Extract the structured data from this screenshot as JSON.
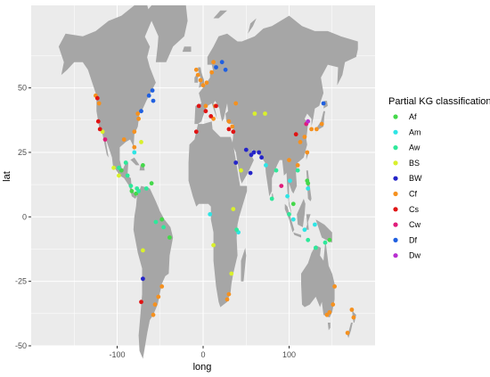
{
  "chart_data": {
    "type": "scatter",
    "title": "",
    "xlabel": "long",
    "ylabel": "lat",
    "xlim": [
      -200,
      200
    ],
    "ylim": [
      -50,
      82
    ],
    "x_ticks": [
      -100,
      0,
      100
    ],
    "y_ticks": [
      -50,
      -25,
      0,
      25,
      50
    ],
    "tick_labels_x": [
      "-100",
      "0",
      "100"
    ],
    "tick_labels_y": [
      "-50",
      "-25",
      "0",
      "25",
      "50"
    ],
    "grid": true,
    "background": "#ebebeb",
    "land_color": "#a6a6a6",
    "legend": {
      "title": "Partial KG classification",
      "position": "right"
    },
    "series": [
      {
        "name": "Af",
        "color": "#44d84a",
        "points": [
          [
            -95,
            18
          ],
          [
            -83,
            10
          ],
          [
            -78,
            9
          ],
          [
            -70,
            20
          ],
          [
            -60,
            13
          ],
          [
            -48,
            -1
          ],
          [
            -39,
            -8
          ],
          [
            105,
            5
          ],
          [
            121,
            14
          ],
          [
            122,
            13
          ],
          [
            147,
            -9
          ]
        ]
      },
      {
        "name": "Am",
        "color": "#2ee5e5",
        "points": [
          [
            -80,
            25
          ],
          [
            8,
            1
          ],
          [
            41,
            -6
          ],
          [
            73,
            20
          ],
          [
            98,
            8
          ],
          [
            101,
            14
          ],
          [
            105,
            -1
          ],
          [
            122,
            11
          ],
          [
            118,
            -5
          ],
          [
            130,
            -3
          ]
        ]
      },
      {
        "name": "Aw",
        "color": "#2ee89a",
        "points": [
          [
            -98,
            19
          ],
          [
            -90,
            21
          ],
          [
            -88,
            16
          ],
          [
            -84,
            12
          ],
          [
            -77,
            11
          ],
          [
            -75,
            10
          ],
          [
            -66,
            11
          ],
          [
            -55,
            -2
          ],
          [
            -46,
            -4
          ],
          [
            39,
            -5
          ],
          [
            80,
            7
          ],
          [
            85,
            18
          ],
          [
            100,
            1
          ],
          [
            110,
            18
          ],
          [
            122,
            -9
          ],
          [
            131,
            -12
          ],
          [
            142,
            -10
          ]
        ]
      },
      {
        "name": "BS",
        "color": "#d9f02c",
        "points": [
          [
            -117,
            33
          ],
          [
            -104,
            19
          ],
          [
            -98,
            16
          ],
          [
            -72,
            29
          ],
          [
            -70,
            -13
          ],
          [
            12,
            -11
          ],
          [
            33,
            -22
          ],
          [
            35,
            3
          ],
          [
            44,
            18
          ],
          [
            60,
            40
          ],
          [
            72,
            40
          ]
        ]
      },
      {
        "name": "BW",
        "color": "#2424c8",
        "points": [
          [
            -70,
            -24
          ],
          [
            38,
            21
          ],
          [
            50,
            26
          ],
          [
            56,
            24
          ],
          [
            59,
            25
          ],
          [
            65,
            25
          ],
          [
            55,
            17
          ],
          [
            68,
            23
          ]
        ]
      },
      {
        "name": "Cf",
        "color": "#f5911f",
        "points": [
          [
            -125,
            47
          ],
          [
            -121,
            44
          ],
          [
            -92,
            30
          ],
          [
            -80,
            33
          ],
          [
            -75,
            38
          ],
          [
            -76,
            40
          ],
          [
            -80,
            27
          ],
          [
            -56,
            -34
          ],
          [
            -58,
            -38
          ],
          [
            -48,
            -27
          ],
          [
            -52,
            -31
          ],
          [
            -3,
            53
          ],
          [
            -6,
            55
          ],
          [
            0,
            51
          ],
          [
            4,
            52
          ],
          [
            10,
            56
          ],
          [
            12,
            60
          ],
          [
            -8,
            57
          ],
          [
            3,
            43
          ],
          [
            14,
            43
          ],
          [
            12,
            38
          ],
          [
            30,
            37
          ],
          [
            34,
            35
          ],
          [
            38,
            44
          ],
          [
            100,
            22
          ],
          [
            110,
            20
          ],
          [
            113,
            29
          ],
          [
            118,
            31
          ],
          [
            121,
            25
          ],
          [
            126,
            34
          ],
          [
            132,
            34
          ],
          [
            138,
            36
          ],
          [
            28,
            -32
          ],
          [
            30,
            -30
          ],
          [
            153,
            -27
          ],
          [
            151,
            -34
          ],
          [
            147,
            -37
          ],
          [
            144,
            -38
          ],
          [
            173,
            -36
          ],
          [
            175,
            -39
          ],
          [
            168,
            -45
          ]
        ]
      },
      {
        "name": "Cs",
        "color": "#e01414",
        "points": [
          [
            -123,
            46
          ],
          [
            -122,
            37
          ],
          [
            -120,
            34
          ],
          [
            -72,
            -33
          ],
          [
            -8,
            33
          ],
          [
            -5,
            43
          ],
          [
            3,
            41
          ],
          [
            9,
            39
          ],
          [
            15,
            43
          ],
          [
            30,
            34
          ],
          [
            35,
            33
          ],
          [
            108,
            32
          ]
        ]
      },
      {
        "name": "Cw",
        "color": "#e01c7a",
        "points": [
          [
            -114,
            30
          ],
          [
            91,
            12
          ],
          [
            120,
            36
          ]
        ]
      },
      {
        "name": "Df",
        "color": "#2060e0",
        "points": [
          [
            -72,
            41
          ],
          [
            -58,
            45
          ],
          [
            -63,
            47
          ],
          [
            -59,
            49
          ],
          [
            15,
            58
          ],
          [
            22,
            60
          ],
          [
            26,
            57
          ],
          [
            140,
            44
          ]
        ]
      },
      {
        "name": "Dw",
        "color": "#b82ed0",
        "points": [
          [
            122,
            37
          ]
        ]
      }
    ]
  }
}
